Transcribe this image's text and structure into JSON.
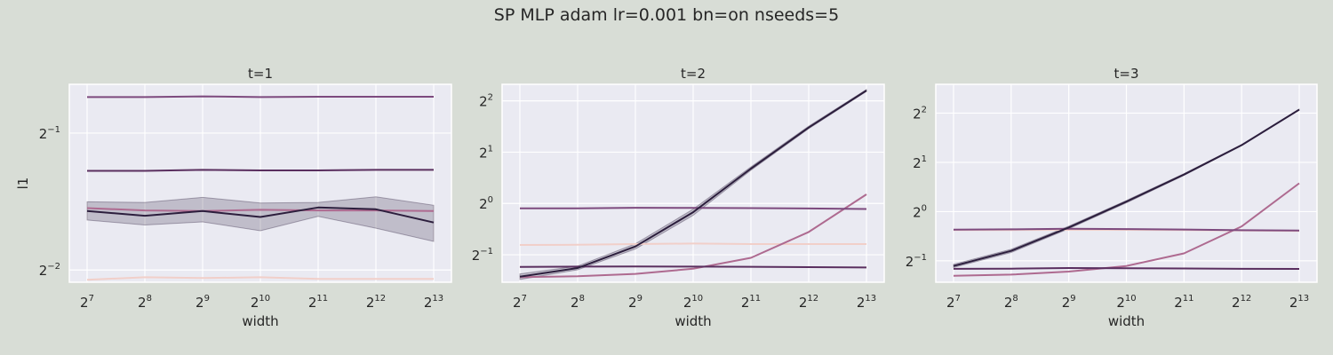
{
  "figure": {
    "suptitle": "SP MLP adam lr=0.001 bn=on nseeds=5"
  },
  "colors": {
    "background": "#d8ddd6",
    "plot_bg": "#eaeaf2",
    "grid": "#ffffff",
    "series": [
      "#f1cfc9",
      "#ae6a90",
      "#7d4a7e",
      "#5a2f5f",
      "#2c1e3d"
    ]
  },
  "chart_data": [
    {
      "type": "line",
      "title": "t=1",
      "xlabel": "width",
      "ylabel": "l1",
      "yscale": "log2",
      "xscale": "log2",
      "grid": true,
      "legend": "none",
      "x": [
        128,
        256,
        512,
        1024,
        2048,
        4096,
        8192
      ],
      "xtick_exponents": [
        "7",
        "8",
        "9",
        "10",
        "11",
        "12",
        "13"
      ],
      "ylim": [
        0.235,
        0.64
      ],
      "ytick_values": [
        0.25,
        0.5
      ],
      "ytick_exponents": [
        "−2",
        "−1"
      ],
      "series": [
        {
          "color_index": 0,
          "values": [
            0.238,
            0.241,
            0.24,
            0.241,
            0.239,
            0.239,
            0.239
          ]
        },
        {
          "color_index": 1,
          "values": [
            0.342,
            0.338,
            0.337,
            0.339,
            0.338,
            0.338,
            0.337
          ]
        },
        {
          "color_index": 2,
          "values": [
            0.6,
            0.6,
            0.602,
            0.6,
            0.601,
            0.601,
            0.601
          ]
        },
        {
          "color_index": 3,
          "values": [
            0.413,
            0.413,
            0.415,
            0.414,
            0.414,
            0.415,
            0.415
          ]
        },
        {
          "color_index": 4,
          "values": [
            0.337,
            0.329,
            0.337,
            0.327,
            0.343,
            0.34,
            0.318
          ],
          "band_low": [
            0.322,
            0.314,
            0.319,
            0.305,
            0.328,
            0.309,
            0.289
          ],
          "band_high": [
            0.353,
            0.352,
            0.361,
            0.351,
            0.352,
            0.362,
            0.347
          ]
        }
      ]
    },
    {
      "type": "line",
      "title": "t=2",
      "xlabel": "width",
      "ylabel": "",
      "yscale": "log2",
      "xscale": "log2",
      "grid": true,
      "legend": "none",
      "x": [
        128,
        256,
        512,
        1024,
        2048,
        4096,
        8192
      ],
      "xtick_exponents": [
        "7",
        "8",
        "9",
        "10",
        "11",
        "12",
        "13"
      ],
      "ylim": [
        0.345,
        5.0
      ],
      "ytick_values": [
        0.5,
        1,
        2,
        4
      ],
      "ytick_exponents": [
        "−1",
        "0",
        "1",
        "2"
      ],
      "series": [
        {
          "color_index": 0,
          "values": [
            0.571,
            0.572,
            0.578,
            0.582,
            0.578,
            0.578,
            0.578
          ]
        },
        {
          "color_index": 1,
          "values": [
            0.37,
            0.374,
            0.386,
            0.414,
            0.48,
            0.68,
            1.13
          ]
        },
        {
          "color_index": 2,
          "values": [
            0.936,
            0.937,
            0.943,
            0.941,
            0.939,
            0.934,
            0.928
          ]
        },
        {
          "color_index": 3,
          "values": [
            0.424,
            0.426,
            0.427,
            0.426,
            0.425,
            0.423,
            0.421
          ]
        },
        {
          "color_index": 4,
          "values": [
            0.372,
            0.418,
            0.559,
            0.888,
            1.6,
            2.79,
            4.6
          ],
          "band_low": [
            0.358,
            0.408,
            0.54,
            0.852,
            1.565,
            2.745,
            4.54
          ],
          "band_high": [
            0.386,
            0.429,
            0.58,
            0.925,
            1.64,
            2.84,
            4.66
          ]
        }
      ]
    },
    {
      "type": "line",
      "title": "t=3",
      "xlabel": "width",
      "ylabel": "",
      "yscale": "log2",
      "xscale": "log2",
      "grid": true,
      "legend": "none",
      "x": [
        128,
        256,
        512,
        1024,
        2048,
        4096,
        8192
      ],
      "xtick_exponents": [
        "7",
        "8",
        "9",
        "10",
        "11",
        "12",
        "13"
      ],
      "ylim": [
        0.37,
        6.0
      ],
      "ytick_values": [
        0.5,
        1,
        2,
        4
      ],
      "ytick_exponents": [
        "−1",
        "0",
        "1",
        "2"
      ],
      "series": [
        {
          "color_index": 0,
          "values": [
            0.77,
            0.771,
            0.773,
            0.773,
            0.771,
            0.766,
            0.761
          ]
        },
        {
          "color_index": 1,
          "values": [
            0.405,
            0.412,
            0.43,
            0.465,
            0.555,
            0.812,
            1.49
          ]
        },
        {
          "color_index": 2,
          "values": [
            0.776,
            0.779,
            0.785,
            0.782,
            0.777,
            0.769,
            0.766
          ]
        },
        {
          "color_index": 3,
          "values": [
            0.447,
            0.448,
            0.452,
            0.451,
            0.449,
            0.447,
            0.446
          ]
        },
        {
          "color_index": 4,
          "values": [
            0.465,
            0.575,
            0.8,
            1.15,
            1.685,
            2.55,
            4.2
          ],
          "band_low": [
            0.455,
            0.562,
            0.785,
            1.13,
            1.665,
            2.53,
            4.18
          ],
          "band_high": [
            0.476,
            0.588,
            0.815,
            1.17,
            1.705,
            2.57,
            4.22
          ]
        }
      ]
    }
  ]
}
